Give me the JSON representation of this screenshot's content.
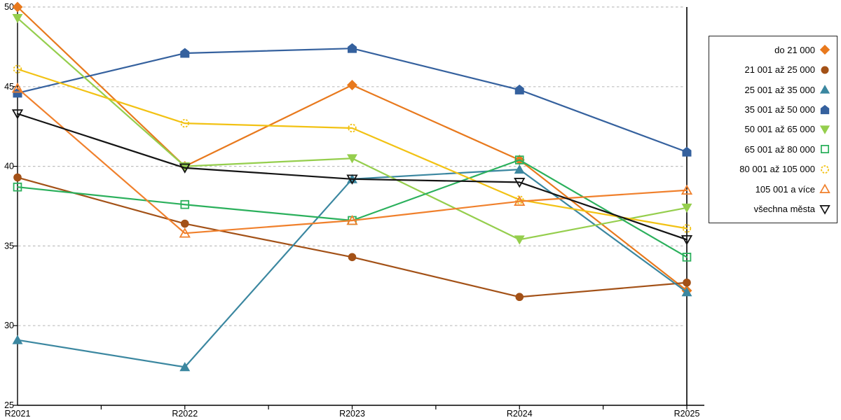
{
  "chart_data": {
    "type": "line",
    "title": "",
    "xlabel": "",
    "ylabel": "",
    "x_labels": [
      "R2021",
      "R2022",
      "R2023",
      "R2024",
      "R2025"
    ],
    "y_ticks": [
      25,
      30,
      35,
      40,
      45,
      50
    ],
    "ylim": [
      25,
      50
    ],
    "grid": "horizontal-dashed",
    "gridline_color": "#BFBFBF",
    "axis_color": "#000000",
    "right_boundary_line": true,
    "legend_position": "right",
    "series": [
      {
        "name": "do 21 000",
        "color": "#E8791D",
        "marker": "diamond",
        "fill": "filled",
        "values": [
          50.0,
          40.0,
          45.1,
          40.4,
          32.2
        ]
      },
      {
        "name": "21 001 až 25 000",
        "color": "#A35117",
        "marker": "circle",
        "fill": "filled",
        "values": [
          39.3,
          36.4,
          34.3,
          31.8,
          32.7
        ]
      },
      {
        "name": "25 001 až 35 000",
        "color": "#3B87A0",
        "marker": "triangle-up",
        "fill": "filled",
        "values": [
          29.1,
          27.4,
          39.2,
          39.8,
          32.1
        ]
      },
      {
        "name": "35 001 až 50 000",
        "color": "#35619E",
        "marker": "pentagon",
        "fill": "filled",
        "values": [
          44.6,
          47.1,
          47.4,
          44.8,
          40.9
        ]
      },
      {
        "name": "50 001 až 65 000",
        "color": "#95CE4D",
        "marker": "triangle-down",
        "fill": "filled",
        "values": [
          49.3,
          40.0,
          40.5,
          35.4,
          37.4
        ]
      },
      {
        "name": "65 001 až 80 000",
        "color": "#2BB05C",
        "marker": "square",
        "fill": "open",
        "values": [
          38.7,
          37.6,
          36.6,
          40.4,
          34.3
        ]
      },
      {
        "name": "80 001 až 105 000",
        "color": "#F2C214",
        "marker": "circle",
        "fill": "open",
        "marker_dashed": true,
        "values": [
          46.1,
          42.7,
          42.4,
          37.9,
          36.1
        ]
      },
      {
        "name": "105 001 a více",
        "color": "#F0802C",
        "marker": "triangle-up",
        "fill": "open",
        "values": [
          44.9,
          35.8,
          36.6,
          37.8,
          38.5
        ]
      },
      {
        "name": "všechna města",
        "color": "#141414",
        "marker": "triangle-down",
        "fill": "open",
        "values": [
          43.3,
          39.9,
          39.2,
          39.0,
          35.4
        ]
      }
    ]
  }
}
